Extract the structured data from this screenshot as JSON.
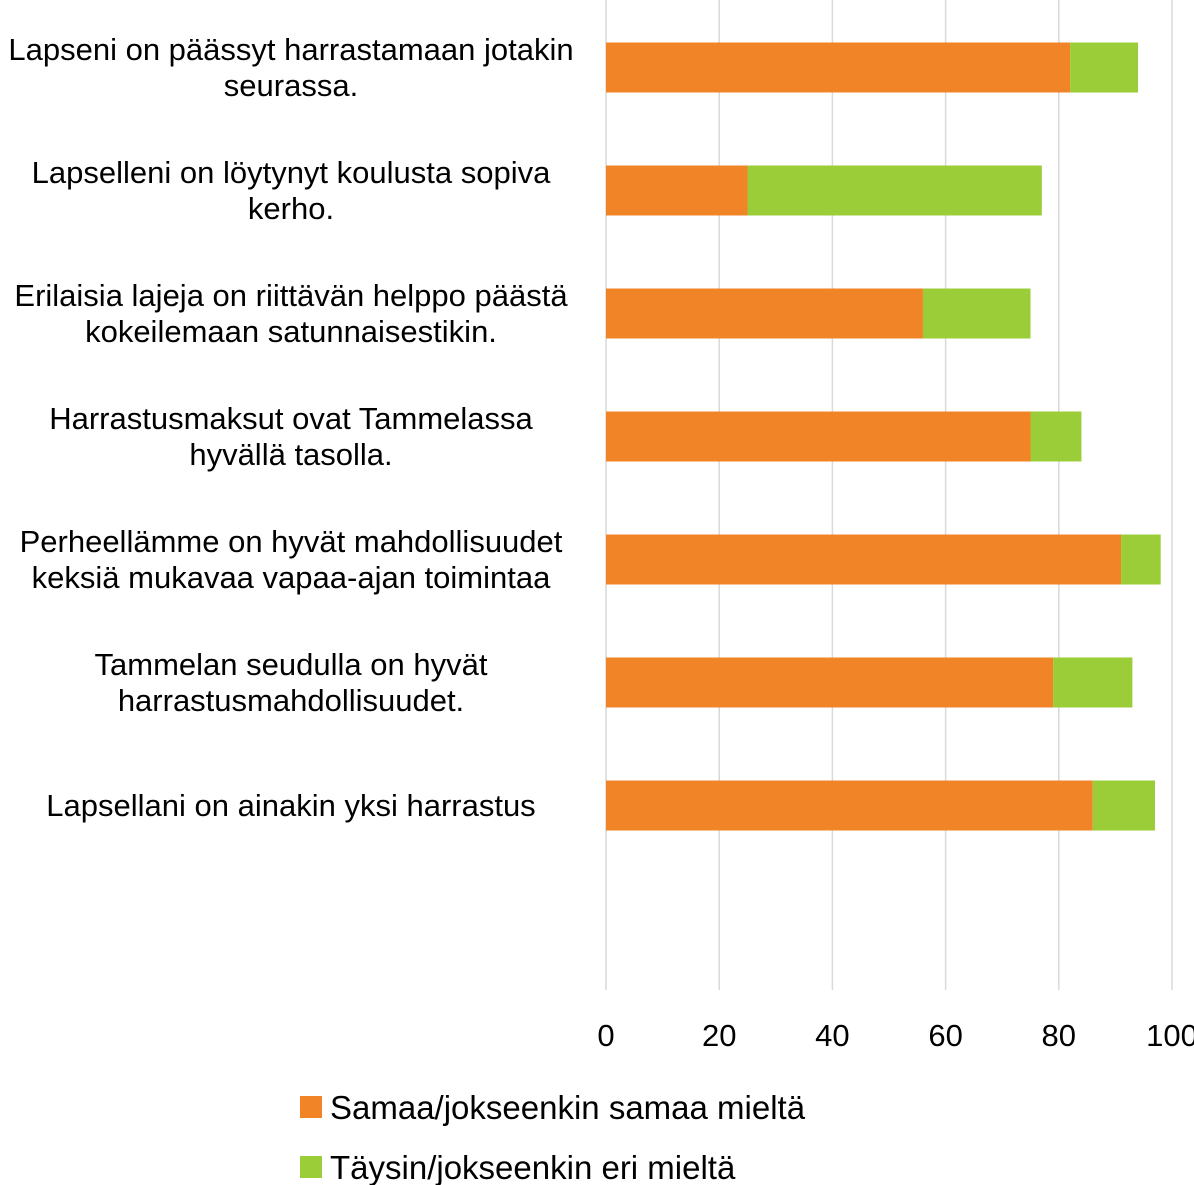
{
  "chart_data": {
    "type": "stacked_barh",
    "categories": [
      "Lapseni on päässyt harrastamaan jotakin seurassa.",
      "Lapselleni on löytynyt koulusta sopiva kerho.",
      "Erilaisia lajeja on riittävän helppo päästä kokeilemaan satunnaisestikin.",
      "Harrastusmaksut ovat Tammelassa hyvällä tasolla.",
      "Perheellämme on hyvät mahdollisuudet keksiä mukavaa vapaa-ajan toimintaa",
      "Tammelan seudulla on hyvät harrastusmahdollisuudet.",
      "Lapsellani on ainakin yksi harrastus"
    ],
    "series": [
      {
        "name": "Samaa/jokseenkin samaa mieltä",
        "color": "#f28428",
        "values": [
          82,
          25,
          56,
          75,
          91,
          79,
          86
        ]
      },
      {
        "name": "Täysin/jokseenkin eri mieltä",
        "color": "#9acd38",
        "values": [
          12,
          52,
          19,
          9,
          7,
          14,
          11
        ]
      }
    ],
    "xlim": [
      0,
      100
    ],
    "xticks": [
      0,
      20,
      40,
      60,
      80,
      100
    ],
    "grid": true
  }
}
